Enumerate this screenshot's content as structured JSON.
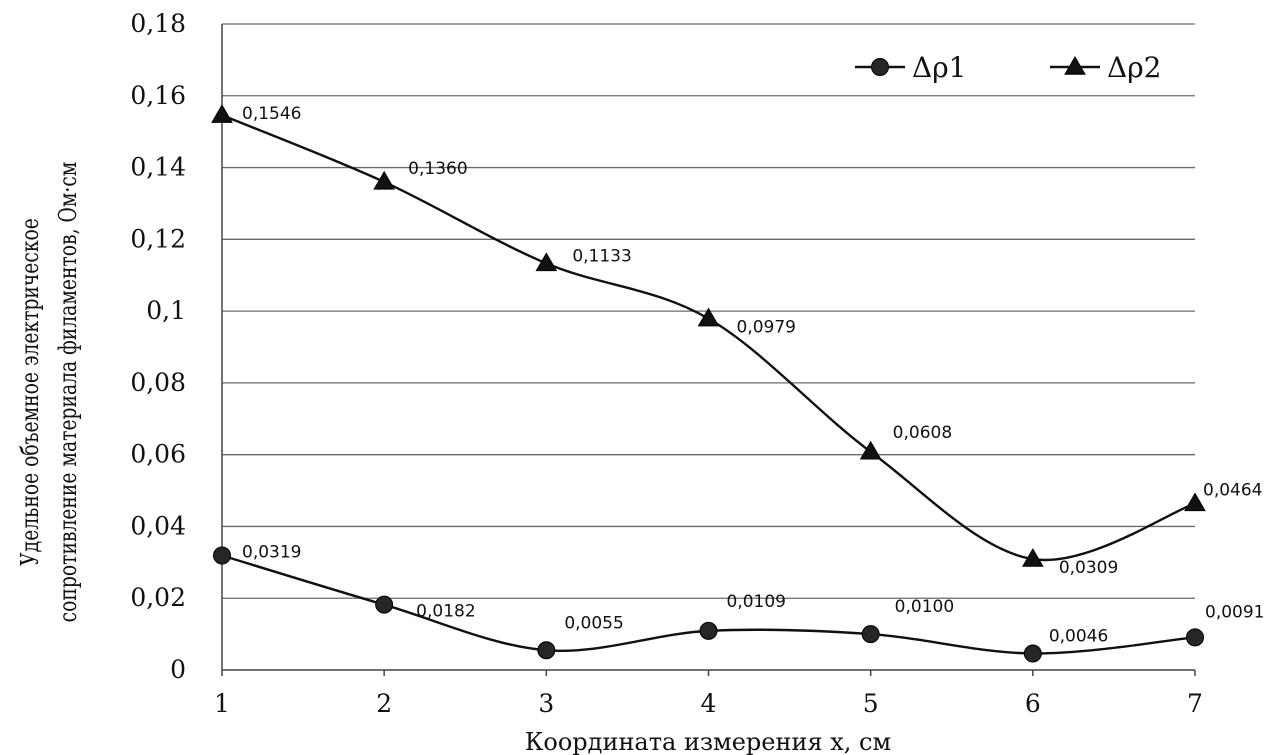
{
  "chart_data": {
    "type": "line",
    "title": "",
    "xlabel": "Координата измерения  x, см",
    "ylabel_lines": [
      "Удельное объемное электрическое",
      "сопротивление материала  филаментов,  Ом·см"
    ],
    "x": [
      1,
      2,
      3,
      4,
      5,
      6,
      7
    ],
    "x_tick_labels": [
      "1",
      "2",
      "3",
      "4",
      "5",
      "6",
      "7"
    ],
    "ylim": [
      0,
      0.18
    ],
    "y_ticks": [
      0,
      0.02,
      0.04,
      0.06,
      0.08,
      0.1,
      0.12,
      0.14,
      0.16,
      0.18
    ],
    "y_tick_labels": [
      "0",
      "0,02",
      "0,04",
      "0,06",
      "0,08",
      "0,1",
      "0,12",
      "0,14",
      "0,16",
      "0,18"
    ],
    "grid": true,
    "legend_position": "top-right",
    "series": [
      {
        "name": "Δρ1",
        "marker": "circle",
        "values": [
          0.0319,
          0.0182,
          0.0055,
          0.0109,
          0.01,
          0.0046,
          0.0091
        ],
        "labels": [
          "0,0319",
          "0,0182",
          "0,0055",
          "0,0109",
          "0,0100",
          "0,0046",
          "0,0091"
        ]
      },
      {
        "name": "Δρ2",
        "marker": "triangle",
        "values": [
          0.1546,
          0.136,
          0.1133,
          0.0979,
          0.0608,
          0.0309,
          0.0464
        ],
        "labels": [
          "0,1546",
          "0,1360",
          "0,1133",
          "0,0979",
          "0,0608",
          "0,0309",
          "0,0464"
        ]
      }
    ]
  }
}
